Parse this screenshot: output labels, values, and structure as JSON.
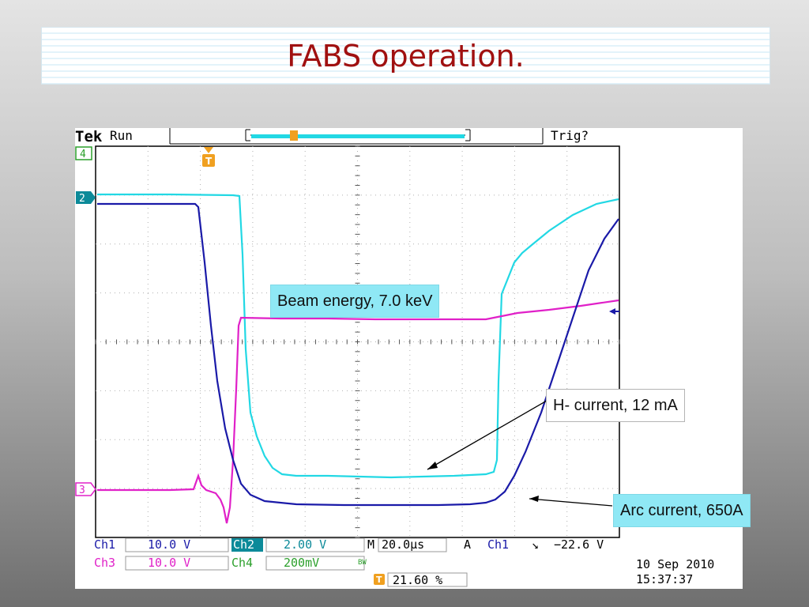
{
  "slide": {
    "title": "FABS operation."
  },
  "scope": {
    "brand": "Tek",
    "mode": "Run",
    "trigger_status": "Trig?",
    "trigger_marker": "T",
    "channel_markers": {
      "ch4": "4",
      "ch2": "2",
      "ch3": "3"
    },
    "settings": {
      "ch1_label": "Ch1",
      "ch1_scale": "10.0 V",
      "ch2_label": "Ch2",
      "ch2_scale": "2.00 V",
      "ch3_label": "Ch3",
      "ch3_scale": "10.0 V",
      "ch4_label": "Ch4",
      "ch4_scale": "200mV",
      "bw_mark": "BW",
      "timebase_prefix": "M",
      "timebase": "20.0µs",
      "acq_mode": "A",
      "trig_source": "Ch1",
      "trig_slope": "↘",
      "trig_level": "−22.6 V",
      "trigger_pos": "21.60 %",
      "date": "10 Sep  2010",
      "time": "15:37:37"
    },
    "colors": {
      "ch1": "#1a1aa8",
      "ch2": "#22d8e4",
      "ch3": "#e020c8",
      "grid": "#b0b0b0",
      "frame": "#000000"
    },
    "traces_description_units": "time-ordered waveforms"
  },
  "annotations": {
    "beam_energy": "Beam energy, 7.0 keV",
    "h_current": "H- current, 12 mA",
    "arc_current": "Arc current, 650A"
  }
}
